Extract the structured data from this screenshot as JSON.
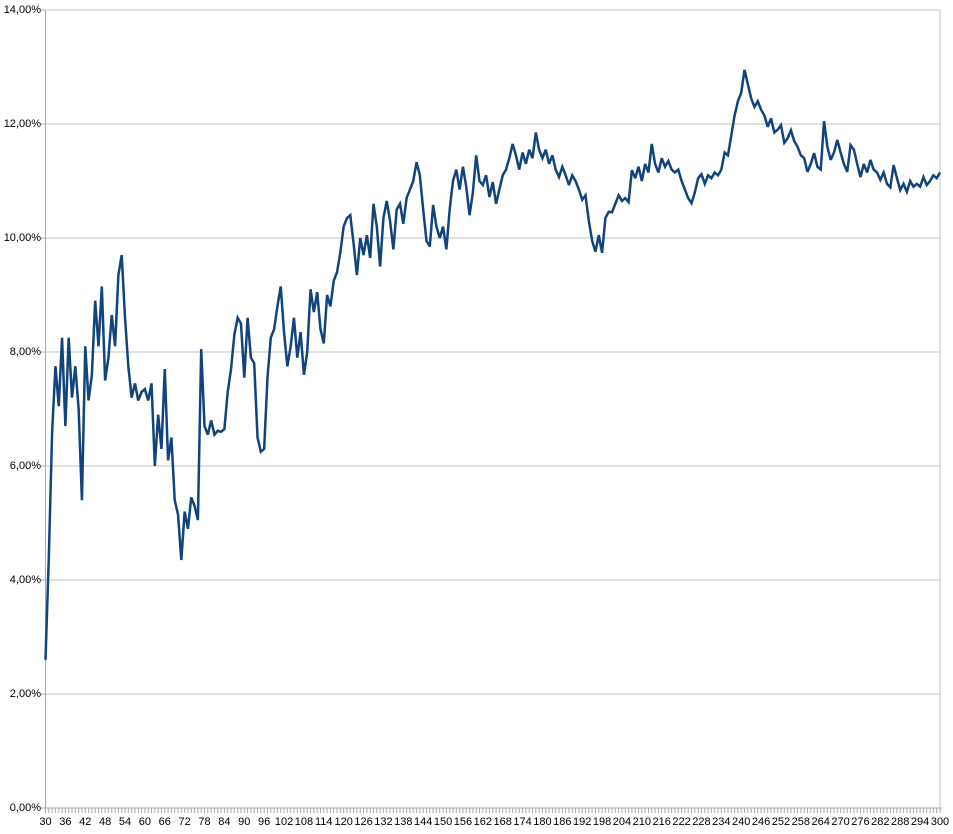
{
  "chart_data": {
    "type": "line",
    "title": "",
    "subtitle": "",
    "xlabel": "",
    "ylabel": "",
    "legend": "none",
    "grid": "horizontal",
    "xlim": [
      30,
      300
    ],
    "ylim": [
      0,
      14
    ],
    "y_tick_step_percent": 2,
    "x_tick_label_step": 6,
    "x_minor_tick_step": 1,
    "y_tick_labels": [
      "0,00%",
      "2,00%",
      "4,00%",
      "6,00%",
      "8,00%",
      "10,00%",
      "12,00%",
      "14,00%"
    ],
    "x_tick_labels": [
      30,
      36,
      42,
      48,
      54,
      60,
      66,
      72,
      78,
      84,
      90,
      96,
      102,
      108,
      114,
      120,
      126,
      132,
      138,
      144,
      150,
      156,
      162,
      168,
      174,
      180,
      186,
      192,
      198,
      204,
      210,
      216,
      222,
      228,
      234,
      240,
      246,
      252,
      258,
      264,
      270,
      276,
      282,
      288,
      294,
      300
    ],
    "x_start": 30,
    "x_step": 1,
    "values_unit": "percent",
    "values": [
      2.6,
      4.4,
      6.6,
      7.75,
      7.05,
      8.25,
      6.7,
      8.25,
      7.2,
      7.75,
      7.0,
      5.4,
      8.1,
      7.15,
      7.6,
      8.9,
      8.1,
      9.15,
      7.5,
      7.9,
      8.65,
      8.1,
      9.35,
      9.7,
      8.6,
      7.75,
      7.2,
      7.45,
      7.15,
      7.3,
      7.35,
      7.15,
      7.45,
      6.0,
      6.9,
      6.3,
      7.7,
      6.1,
      6.5,
      5.4,
      5.15,
      4.35,
      5.2,
      4.9,
      5.45,
      5.3,
      5.05,
      8.05,
      6.7,
      6.55,
      6.8,
      6.55,
      6.62,
      6.6,
      6.65,
      7.3,
      7.7,
      8.3,
      8.6,
      8.5,
      7.55,
      8.6,
      7.9,
      7.8,
      6.5,
      6.25,
      6.3,
      7.55,
      8.25,
      8.4,
      8.8,
      9.15,
      8.35,
      7.75,
      8.1,
      8.6,
      7.9,
      8.35,
      7.6,
      8.0,
      9.1,
      8.7,
      9.05,
      8.4,
      8.15,
      9.0,
      8.8,
      9.25,
      9.4,
      9.75,
      10.2,
      10.35,
      10.4,
      9.9,
      9.35,
      10.0,
      9.7,
      10.05,
      9.65,
      10.6,
      10.2,
      9.5,
      10.35,
      10.65,
      10.3,
      9.8,
      10.5,
      10.6,
      10.25,
      10.7,
      10.85,
      11.0,
      11.33,
      11.1,
      10.5,
      9.95,
      9.85,
      10.58,
      10.2,
      10.0,
      10.2,
      9.8,
      10.5,
      11.0,
      11.2,
      10.85,
      11.25,
      10.9,
      10.4,
      10.8,
      11.45,
      11.0,
      10.93,
      11.1,
      10.72,
      10.98,
      10.6,
      10.85,
      11.1,
      11.2,
      11.4,
      11.65,
      11.45,
      11.2,
      11.5,
      11.3,
      11.55,
      11.4,
      11.85,
      11.55,
      11.4,
      11.55,
      11.3,
      11.45,
      11.2,
      11.07,
      11.25,
      11.1,
      10.93,
      11.1,
      11.0,
      10.85,
      10.67,
      10.75,
      10.3,
      9.95,
      9.76,
      10.05,
      9.74,
      10.35,
      10.46,
      10.45,
      10.6,
      10.75,
      10.65,
      10.7,
      10.63,
      11.19,
      11.05,
      11.25,
      11.0,
      11.3,
      11.15,
      11.65,
      11.3,
      11.15,
      11.4,
      11.25,
      11.35,
      11.2,
      11.15,
      11.2,
      11.0,
      10.85,
      10.7,
      10.61,
      10.8,
      11.05,
      11.12,
      10.95,
      11.1,
      11.05,
      11.15,
      11.1,
      11.2,
      11.5,
      11.45,
      11.8,
      12.15,
      12.4,
      12.55,
      12.95,
      12.7,
      12.45,
      12.3,
      12.4,
      12.25,
      12.15,
      11.95,
      12.1,
      11.85,
      11.9,
      11.98,
      11.67,
      11.75,
      11.89,
      11.7,
      11.6,
      11.45,
      11.4,
      11.16,
      11.3,
      11.49,
      11.25,
      11.2,
      12.05,
      11.6,
      11.37,
      11.5,
      11.72,
      11.5,
      11.3,
      11.16,
      11.63,
      11.55,
      11.3,
      11.07,
      11.3,
      11.15,
      11.37,
      11.2,
      11.15,
      11.02,
      11.15,
      10.95,
      10.89,
      11.28,
      11.05,
      10.84,
      10.95,
      10.81,
      11.0,
      10.9,
      10.95,
      10.9,
      11.07,
      10.93,
      11.0,
      11.1,
      11.05,
      11.15
    ]
  },
  "colors": {
    "line": "#11437C",
    "gridline": "#C3C3C3",
    "axis": "#A9A9A9",
    "background": "#FFFFFF",
    "label_text": "#000000"
  }
}
